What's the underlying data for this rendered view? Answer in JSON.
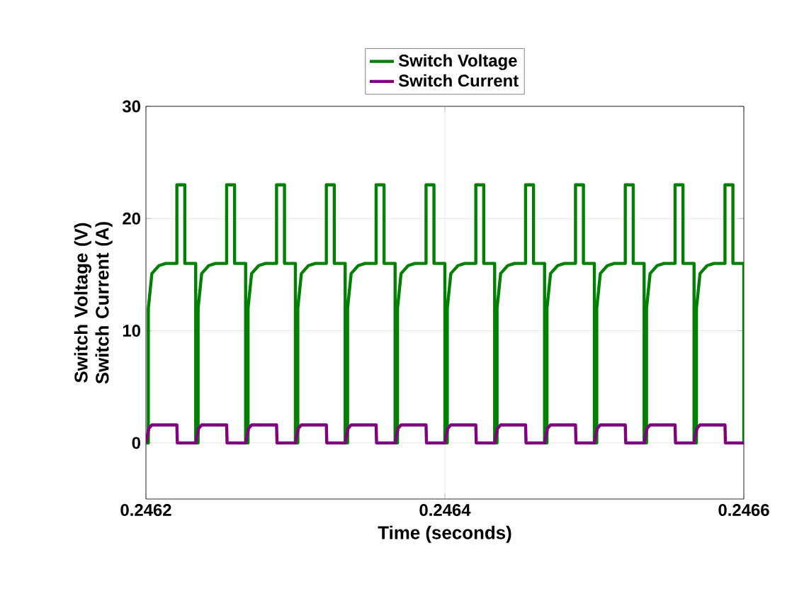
{
  "chart_data": {
    "type": "line",
    "xlabel": "Time (seconds)",
    "ylabel": "Switch Voltage (V) Switch Current (A)",
    "xlim": [
      0.2462,
      0.2466
    ],
    "xticks": [
      0.2462,
      0.2464,
      0.2466
    ],
    "ylim": [
      -5,
      30
    ],
    "yticks": [
      0,
      10,
      20,
      30
    ],
    "grid": true,
    "legend": "top",
    "series": [
      {
        "name": "Switch Voltage",
        "color": "#008000",
        "x": [
          0.2462,
          0.2462016,
          0.2462016,
          0.246204,
          0.2462087,
          0.2462133,
          0.2462207,
          0.2462207,
          0.246226,
          0.246226,
          0.2462333,
          0.2462333,
          0.2462349,
          0.2462349,
          0.2462373,
          0.246242,
          0.2462466,
          0.246254,
          0.246254,
          0.2462593,
          0.2462593,
          0.2462667,
          0.2462667,
          0.2462683,
          0.2462683,
          0.2462707,
          0.2462754,
          0.24628,
          0.2462874,
          0.2462874,
          0.2462927,
          0.2462927,
          0.2463,
          0.2463,
          0.2463016,
          0.2463016,
          0.246304,
          0.2463087,
          0.2463133,
          0.2463207,
          0.2463207,
          0.246326,
          0.246326,
          0.2463333,
          0.2463333,
          0.2463349,
          0.2463349,
          0.2463373,
          0.246342,
          0.2463466,
          0.246354,
          0.246354,
          0.2463593,
          0.2463593,
          0.2463667,
          0.2463667,
          0.2463683,
          0.2463683,
          0.2463707,
          0.2463754,
          0.24638,
          0.2463874,
          0.2463874,
          0.2463927,
          0.2463927,
          0.2464,
          0.2464,
          0.2464016,
          0.2464016,
          0.246404,
          0.2464087,
          0.2464133,
          0.2464207,
          0.2464207,
          0.246426,
          0.246426,
          0.2464333,
          0.2464333,
          0.2464349,
          0.2464349,
          0.2464373,
          0.246442,
          0.2464466,
          0.246454,
          0.246454,
          0.2464593,
          0.2464593,
          0.2464667,
          0.2464667,
          0.2464683,
          0.2464683,
          0.2464707,
          0.2464754,
          0.24648,
          0.2464874,
          0.2464874,
          0.2464927,
          0.2464927,
          0.2465,
          0.2465,
          0.2465016,
          0.2465016,
          0.246504,
          0.2465087,
          0.2465133,
          0.2465207,
          0.2465207,
          0.246526,
          0.246526,
          0.2465333,
          0.2465333,
          0.2465349,
          0.2465349,
          0.2465373,
          0.246542,
          0.2465466,
          0.246554,
          0.246554,
          0.2465593,
          0.2465593,
          0.2465667,
          0.2465667,
          0.2465683,
          0.2465683,
          0.2465707,
          0.2465754,
          0.24658,
          0.2465874,
          0.2465874,
          0.2465927,
          0.2465927,
          0.2466,
          0.2466
        ],
        "values": [
          0,
          0,
          12,
          15.1,
          15.8,
          16,
          16,
          23,
          23,
          16,
          16,
          0,
          0,
          12,
          15.1,
          15.8,
          16,
          16,
          23,
          23,
          16,
          16,
          0,
          0,
          12,
          15.1,
          15.8,
          16,
          16,
          23,
          23,
          16,
          16,
          0,
          0,
          12,
          15.1,
          15.8,
          16,
          16,
          23,
          23,
          16,
          16,
          0,
          0,
          12,
          15.1,
          15.8,
          16,
          16,
          23,
          23,
          16,
          16,
          0,
          0,
          12,
          15.1,
          15.8,
          16,
          16,
          23,
          23,
          16,
          16,
          0,
          0,
          12,
          15.1,
          15.8,
          16,
          16,
          23,
          23,
          16,
          16,
          0,
          0,
          12,
          15.1,
          15.8,
          16,
          16,
          23,
          23,
          16,
          16,
          0,
          0,
          12,
          15.1,
          15.8,
          16,
          16,
          23,
          23,
          16,
          16,
          0,
          0,
          12,
          15.1,
          15.8,
          16,
          16,
          23,
          23,
          16,
          16,
          0,
          0,
          12,
          15.1,
          15.8,
          16,
          16,
          23,
          23,
          16,
          16,
          0,
          0,
          12,
          15.1,
          15.8,
          16,
          16,
          23,
          23,
          16,
          16,
          0
        ]
      },
      {
        "name": "Switch Current",
        "color": "#800080",
        "x": [
          0.2462,
          0.2462008,
          0.246202,
          0.246204,
          0.2462207,
          0.246221,
          0.2462333,
          0.2462341,
          0.2462353,
          0.2462373,
          0.246254,
          0.2462543,
          0.2462667,
          0.2462675,
          0.2462687,
          0.2462707,
          0.2462874,
          0.2462877,
          0.2463,
          0.2463008,
          0.246302,
          0.246304,
          0.2463207,
          0.246321,
          0.2463333,
          0.2463341,
          0.2463353,
          0.2463373,
          0.246354,
          0.2463543,
          0.2463667,
          0.2463675,
          0.2463687,
          0.2463707,
          0.2463874,
          0.2463877,
          0.2464,
          0.2464008,
          0.246402,
          0.246404,
          0.2464207,
          0.246421,
          0.2464333,
          0.2464341,
          0.2464353,
          0.2464373,
          0.246454,
          0.2464543,
          0.2464667,
          0.2464675,
          0.2464687,
          0.2464707,
          0.2464874,
          0.2464877,
          0.2465,
          0.2465008,
          0.246502,
          0.246504,
          0.2465207,
          0.246521,
          0.2465333,
          0.2465341,
          0.2465353,
          0.2465373,
          0.246554,
          0.2465543,
          0.2465667,
          0.2465675,
          0.2465687,
          0.2465707,
          0.2465874,
          0.2465877,
          0.2466
        ],
        "values": [
          0,
          0.6,
          1.3,
          1.6,
          1.6,
          0,
          0,
          0.6,
          1.3,
          1.6,
          1.6,
          0,
          0,
          0.6,
          1.3,
          1.6,
          1.6,
          0,
          0,
          0.6,
          1.3,
          1.6,
          1.6,
          0,
          0,
          0.6,
          1.3,
          1.6,
          1.6,
          0,
          0,
          0.6,
          1.3,
          1.6,
          1.6,
          0,
          0,
          0.6,
          1.3,
          1.6,
          1.6,
          0,
          0,
          0.6,
          1.3,
          1.6,
          1.6,
          0,
          0,
          0.6,
          1.3,
          1.6,
          1.6,
          0,
          0,
          0.6,
          1.3,
          1.6,
          1.6,
          0,
          0,
          0.6,
          1.3,
          1.6,
          1.6,
          0,
          0,
          0.6,
          1.3,
          1.6,
          1.6,
          0,
          0
        ]
      }
    ]
  }
}
